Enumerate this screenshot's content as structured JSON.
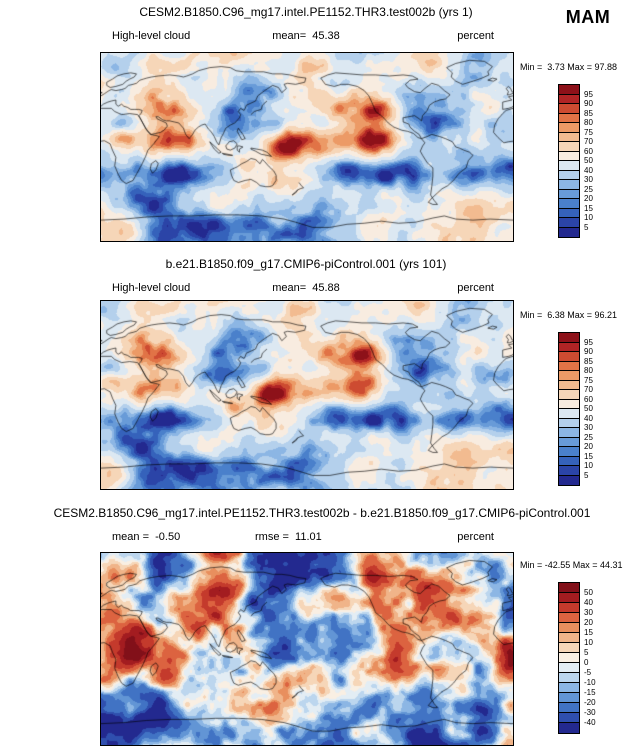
{
  "season_label": "MAM",
  "panel1": {
    "title": "CESM2.B1850.C96_mg17.intel.PE1152.THR3.test002b (yrs 1)",
    "field_label": "High-level cloud",
    "mean_label": "mean=  45.38",
    "units_label": "percent",
    "minmax_label": "Min =  3.73 Max = 97.88"
  },
  "panel2": {
    "title": "b.e21.B1850.f09_g17.CMIP6-piControl.001 (yrs 101)",
    "field_label": "High-level cloud",
    "mean_label": "mean=  45.88",
    "units_label": "percent",
    "minmax_label": "Min =  6.38 Max = 96.21"
  },
  "panel3": {
    "title": "CESM2.B1850.C96_mg17.intel.PE1152.THR3.test002b - b.e21.B1850.f09_g17.CMIP6-piControl.001",
    "mean_label": "mean =  -0.50",
    "rmse_label": "rmse =  11.01",
    "units_label": "percent",
    "minmax_label": "Min = -42.55 Max = 44.31"
  },
  "chart_data": [
    {
      "type": "heatmap",
      "map": "global latitude-longitude filled-contour map, longitudes 0-360E",
      "title": "CESM2.B1850.C96_mg17.intel.PE1152.THR3.test002b (yrs 1)",
      "variable": "High-level cloud",
      "season": "MAM",
      "units": "percent",
      "mean": 45.38,
      "min": 3.73,
      "max": 97.88,
      "contour_levels": [
        5,
        10,
        15,
        20,
        25,
        30,
        40,
        50,
        60,
        70,
        75,
        80,
        85,
        90,
        95
      ],
      "palette": [
        "#23298f",
        "#2b44a7",
        "#3562bb",
        "#4a80cb",
        "#689bd8",
        "#8cb6e4",
        "#b4d0ec",
        "#dce8f2",
        "#f8ece0",
        "#f6d6b8",
        "#f2bb90",
        "#ec9a66",
        "#e17346",
        "#cd4b31",
        "#b02425",
        "#8d1119"
      ],
      "legend_position": "right vertical colorbar"
    },
    {
      "type": "heatmap",
      "map": "global latitude-longitude filled-contour map, longitudes 0-360E",
      "title": "b.e21.B1850.f09_g17.CMIP6-piControl.001 (yrs 101)",
      "variable": "High-level cloud",
      "season": "MAM",
      "units": "percent",
      "mean": 45.88,
      "min": 6.38,
      "max": 96.21,
      "contour_levels": [
        5,
        10,
        15,
        20,
        25,
        30,
        40,
        50,
        60,
        70,
        75,
        80,
        85,
        90,
        95
      ],
      "palette": [
        "#23298f",
        "#2b44a7",
        "#3562bb",
        "#4a80cb",
        "#689bd8",
        "#8cb6e4",
        "#b4d0ec",
        "#dce8f2",
        "#f8ece0",
        "#f6d6b8",
        "#f2bb90",
        "#ec9a66",
        "#e17346",
        "#cd4b31",
        "#b02425",
        "#8d1119"
      ],
      "legend_position": "right vertical colorbar"
    },
    {
      "type": "heatmap",
      "map": "global latitude-longitude filled-contour difference map, longitudes 0-360E",
      "title": "CESM2.B1850.C96_mg17.intel.PE1152.THR3.test002b - b.e21.B1850.f09_g17.CMIP6-piControl.001",
      "season": "MAM",
      "units": "percent",
      "mean": -0.5,
      "rmse": 11.01,
      "min": -42.55,
      "max": 44.31,
      "contour_levels": [
        -40,
        -30,
        -20,
        -15,
        -10,
        -5,
        0,
        5,
        10,
        15,
        20,
        30,
        40,
        50
      ],
      "palette": [
        "#23298f",
        "#2f4fae",
        "#4173c4",
        "#6295d5",
        "#8cb6e4",
        "#bcd6ee",
        "#e3edf4",
        "#f9efe3",
        "#f6d6b8",
        "#f0b489",
        "#e88f5e",
        "#dc6340",
        "#c43a2c",
        "#a31c20",
        "#821019"
      ],
      "legend_position": "right vertical colorbar"
    }
  ]
}
